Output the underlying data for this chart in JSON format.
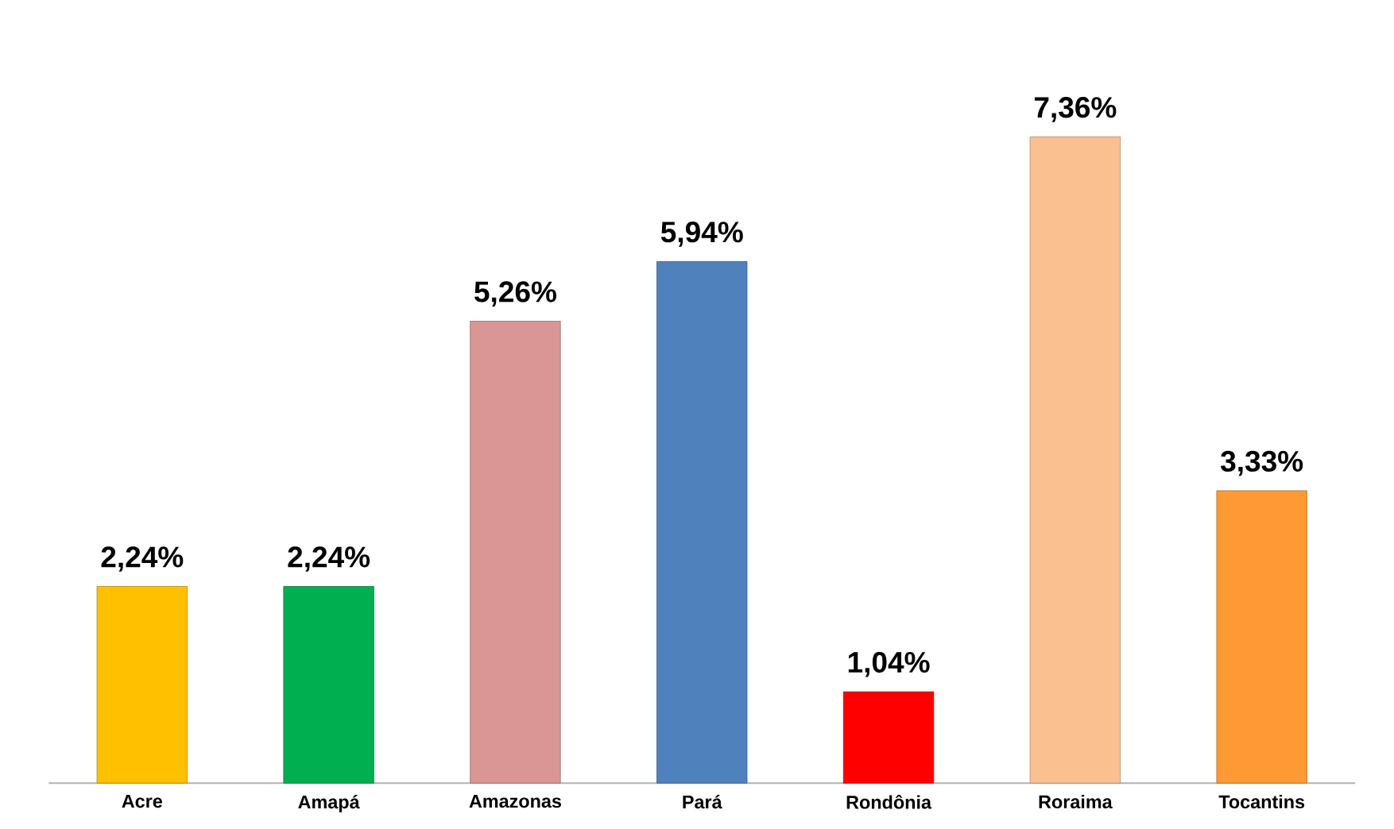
{
  "chart_data": {
    "type": "bar",
    "categories": [
      "Acre",
      "Amapá",
      "Amazonas",
      "Pará",
      "Rondônia",
      "Roraima",
      "Tocantins"
    ],
    "values": [
      2.24,
      2.24,
      5.26,
      5.94,
      1.04,
      7.36,
      3.33
    ],
    "value_labels": [
      "2,24%",
      "2,24%",
      "5,26%",
      "5,94%",
      "1,04%",
      "7,36%",
      "3,33%"
    ],
    "colors": [
      "#ffc000",
      "#00b050",
      "#d99694",
      "#4f81bd",
      "#ff0000",
      "#fac090",
      "#ff9933"
    ]
  }
}
